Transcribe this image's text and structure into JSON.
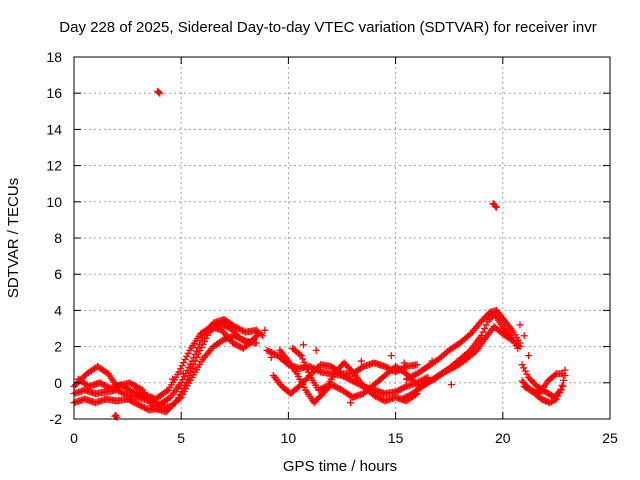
{
  "chart_data": {
    "type": "scatter",
    "title": "Day 228 of 2025, Sidereal Day-to-day VTEC variation (SDTVAR) for receiver invr",
    "xlabel": "GPS time / hours",
    "ylabel": "SDTVAR / TECUs",
    "xlim": [
      0,
      25
    ],
    "ylim": [
      -2,
      18
    ],
    "xticks": [
      0,
      5,
      10,
      15,
      20,
      25
    ],
    "yticks": [
      -2,
      0,
      2,
      4,
      6,
      8,
      10,
      12,
      14,
      16,
      18
    ],
    "grid": true,
    "marker": "plus",
    "series": [
      {
        "name": "SDTVAR",
        "color": "#ff0000",
        "tracks": [
          [
            [
              0.0,
              -0.6
            ],
            [
              0.5,
              -0.4
            ],
            [
              1.0,
              -0.6
            ],
            [
              1.5,
              -0.5
            ],
            [
              2.0,
              -0.4
            ],
            [
              2.5,
              -0.7
            ],
            [
              3.0,
              -0.8
            ],
            [
              3.5,
              -1.0
            ],
            [
              4.0,
              -1.2
            ],
            [
              4.5,
              -0.8
            ],
            [
              5.0,
              0.0
            ],
            [
              5.5,
              1.2
            ],
            [
              6.0,
              2.5
            ],
            [
              6.5,
              3.3
            ],
            [
              7.0,
              3.5
            ],
            [
              7.5,
              3.1
            ],
            [
              8.0,
              2.8
            ],
            [
              8.5,
              2.9
            ],
            [
              8.8,
              2.6
            ]
          ],
          [
            [
              0.0,
              -0.2
            ],
            [
              0.6,
              0.5
            ],
            [
              1.1,
              0.9
            ],
            [
              1.6,
              0.5
            ],
            [
              2.0,
              -0.2
            ],
            [
              2.6,
              0.0
            ],
            [
              3.2,
              -0.4
            ],
            [
              3.7,
              -1.4
            ],
            [
              4.3,
              -1.6
            ],
            [
              4.8,
              -1.0
            ],
            [
              5.3,
              0.2
            ],
            [
              5.8,
              1.6
            ],
            [
              6.3,
              2.8
            ],
            [
              6.8,
              3.3
            ],
            [
              7.3,
              3.0
            ],
            [
              7.8,
              2.4
            ],
            [
              8.2,
              2.2
            ],
            [
              8.6,
              2.7
            ]
          ],
          [
            [
              0.0,
              -1.1
            ],
            [
              0.5,
              -0.9
            ],
            [
              1.0,
              -1.1
            ],
            [
              1.5,
              -0.9
            ],
            [
              2.0,
              -1.0
            ],
            [
              2.5,
              -0.9
            ],
            [
              3.0,
              -1.2
            ],
            [
              3.5,
              -1.5
            ],
            [
              4.0,
              -1.4
            ],
            [
              4.5,
              -1.3
            ],
            [
              5.0,
              -0.8
            ],
            [
              5.5,
              0.3
            ],
            [
              6.0,
              1.3
            ],
            [
              6.5,
              2.0
            ],
            [
              7.0,
              2.4
            ],
            [
              7.5,
              2.6
            ],
            [
              8.0,
              2.3
            ],
            [
              8.5,
              2.2
            ]
          ],
          [
            [
              0.2,
              0.2
            ],
            [
              0.7,
              -0.2
            ],
            [
              1.2,
              0.0
            ],
            [
              1.7,
              -0.3
            ],
            [
              2.2,
              -0.1
            ],
            [
              2.7,
              -0.5
            ],
            [
              3.2,
              -0.6
            ],
            [
              3.8,
              -0.9
            ],
            [
              4.4,
              -0.4
            ],
            [
              4.9,
              0.6
            ],
            [
              5.4,
              1.8
            ],
            [
              5.9,
              2.7
            ],
            [
              6.4,
              3.1
            ],
            [
              6.9,
              2.9
            ],
            [
              7.4,
              2.2
            ],
            [
              7.9,
              1.9
            ],
            [
              8.4,
              2.4
            ]
          ],
          [
            [
              9.0,
              1.8
            ],
            [
              9.5,
              1.5
            ],
            [
              10.0,
              1.0
            ],
            [
              10.5,
              0.8
            ],
            [
              11.0,
              0.9
            ],
            [
              11.5,
              0.6
            ],
            [
              12.0,
              0.5
            ],
            [
              12.5,
              0.4
            ],
            [
              13.0,
              0.1
            ],
            [
              13.5,
              -0.2
            ],
            [
              14.0,
              -0.4
            ],
            [
              14.5,
              -0.6
            ],
            [
              15.0,
              -0.5
            ],
            [
              15.5,
              -0.2
            ],
            [
              16.0,
              0.0
            ],
            [
              16.5,
              0.3
            ]
          ],
          [
            [
              9.3,
              0.4
            ],
            [
              9.7,
              -0.2
            ],
            [
              10.1,
              -0.6
            ],
            [
              10.5,
              -0.2
            ],
            [
              11.0,
              0.4
            ],
            [
              11.5,
              1.0
            ],
            [
              12.0,
              0.9
            ],
            [
              12.5,
              0.5
            ],
            [
              13.0,
              0.5
            ],
            [
              13.5,
              0.9
            ],
            [
              14.0,
              1.1
            ],
            [
              14.5,
              0.9
            ],
            [
              15.0,
              0.6
            ],
            [
              15.5,
              0.9
            ],
            [
              16.0,
              1.0
            ]
          ],
          [
            [
              9.6,
              1.8
            ],
            [
              10.0,
              1.2
            ],
            [
              10.4,
              0.5
            ],
            [
              10.8,
              -0.4
            ],
            [
              11.2,
              -1.1
            ],
            [
              11.6,
              -0.6
            ],
            [
              12.0,
              -0.1
            ],
            [
              12.5,
              -0.4
            ],
            [
              13.0,
              -0.8
            ],
            [
              13.5,
              -0.6
            ],
            [
              14.0,
              -0.1
            ],
            [
              14.5,
              0.4
            ],
            [
              15.0,
              0.9
            ],
            [
              15.5,
              0.5
            ],
            [
              16.0,
              -0.1
            ]
          ],
          [
            [
              10.2,
              1.9
            ],
            [
              10.6,
              1.5
            ],
            [
              11.0,
              0.4
            ],
            [
              11.4,
              -0.4
            ],
            [
              11.8,
              -0.2
            ],
            [
              12.2,
              0.6
            ],
            [
              12.6,
              1.1
            ],
            [
              13.0,
              0.6
            ],
            [
              13.5,
              -0.2
            ],
            [
              14.0,
              -0.7
            ],
            [
              14.5,
              -1.0
            ],
            [
              15.0,
              -0.8
            ],
            [
              15.5,
              -1.0
            ],
            [
              16.0,
              -0.6
            ]
          ],
          [
            [
              15.3,
              -0.9
            ],
            [
              15.8,
              -0.6
            ],
            [
              16.3,
              -0.1
            ],
            [
              16.8,
              0.2
            ],
            [
              17.3,
              0.6
            ],
            [
              17.8,
              0.9
            ],
            [
              18.3,
              1.3
            ],
            [
              18.8,
              1.8
            ],
            [
              19.2,
              2.5
            ],
            [
              19.6,
              3.1
            ],
            [
              20.0,
              2.7
            ],
            [
              20.5,
              2.3
            ],
            [
              20.8,
              2.0
            ]
          ],
          [
            [
              15.5,
              0.2
            ],
            [
              16.0,
              0.5
            ],
            [
              16.5,
              0.9
            ],
            [
              17.0,
              1.3
            ],
            [
              17.5,
              1.8
            ],
            [
              18.0,
              2.2
            ],
            [
              18.5,
              2.7
            ],
            [
              19.0,
              3.4
            ],
            [
              19.4,
              3.9
            ],
            [
              19.7,
              4.0
            ],
            [
              20.1,
              3.4
            ],
            [
              20.5,
              2.8
            ],
            [
              20.8,
              2.2
            ]
          ],
          [
            [
              16.0,
              -0.4
            ],
            [
              16.5,
              0.0
            ],
            [
              17.0,
              0.4
            ],
            [
              17.5,
              0.8
            ],
            [
              18.0,
              1.3
            ],
            [
              18.5,
              1.8
            ],
            [
              19.0,
              2.6
            ],
            [
              19.3,
              3.4
            ],
            [
              19.6,
              3.8
            ],
            [
              20.0,
              3.1
            ],
            [
              20.4,
              2.5
            ],
            [
              20.7,
              1.9
            ]
          ],
          [
            [
              20.9,
              1.0
            ],
            [
              21.2,
              0.3
            ],
            [
              21.6,
              -0.2
            ],
            [
              22.0,
              -0.5
            ],
            [
              22.4,
              -0.8
            ],
            [
              22.7,
              -0.4
            ],
            [
              22.9,
              0.4
            ]
          ],
          [
            [
              20.9,
              0.1
            ],
            [
              21.3,
              -0.4
            ],
            [
              21.7,
              -0.6
            ],
            [
              22.1,
              0.1
            ],
            [
              22.5,
              0.5
            ],
            [
              22.8,
              0.5
            ]
          ],
          [
            [
              21.0,
              -0.2
            ],
            [
              21.4,
              -0.5
            ],
            [
              21.8,
              -0.9
            ],
            [
              22.2,
              -1.1
            ],
            [
              22.5,
              -0.9
            ],
            [
              22.8,
              -0.2
            ]
          ]
        ],
        "points": [
          [
            3.95,
            16.05
          ],
          [
            4.0,
            16.0
          ],
          [
            3.9,
            16.1
          ],
          [
            19.55,
            9.9
          ],
          [
            19.6,
            9.85
          ],
          [
            19.65,
            9.75
          ],
          [
            19.7,
            9.7
          ],
          [
            1.9,
            -1.85
          ],
          [
            1.95,
            -1.8
          ],
          [
            2.0,
            -1.9
          ],
          [
            4.6,
            0.2
          ],
          [
            5.1,
            0.5
          ],
          [
            8.9,
            2.9
          ],
          [
            9.2,
            1.4
          ],
          [
            10.7,
            2.1
          ],
          [
            11.3,
            1.8
          ],
          [
            12.9,
            -1.1
          ],
          [
            13.4,
            1.2
          ],
          [
            14.8,
            1.5
          ],
          [
            15.4,
            1.1
          ],
          [
            16.7,
            1.2
          ],
          [
            17.6,
            -0.1
          ],
          [
            20.8,
            3.2
          ],
          [
            21.0,
            2.6
          ],
          [
            21.2,
            1.5
          ],
          [
            22.9,
            0.7
          ]
        ]
      }
    ]
  }
}
